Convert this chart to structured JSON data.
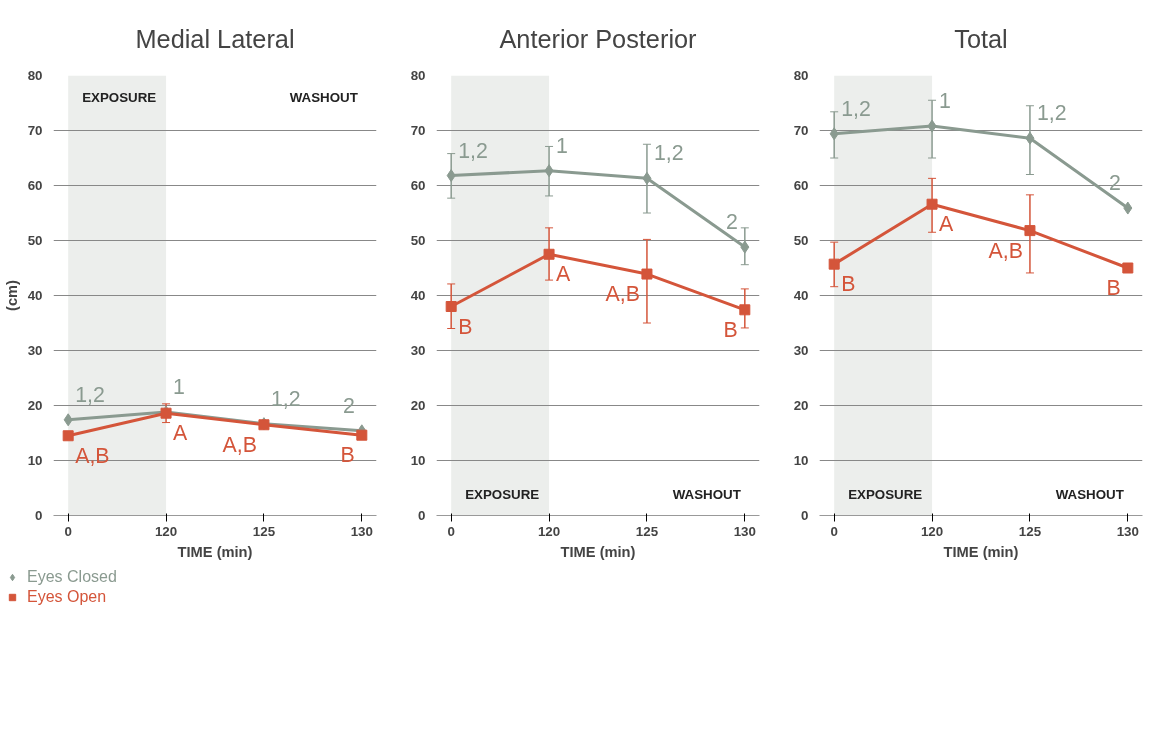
{
  "chart_data": [
    {
      "type": "line",
      "title": "Medial Lateral",
      "xlabel": "TIME (min)",
      "ylabel": "(cm)",
      "categories": [
        "0",
        "120",
        "125",
        "130"
      ],
      "ylim": [
        0,
        80
      ],
      "yticks": [
        0,
        10,
        20,
        30,
        40,
        50,
        60,
        70,
        80
      ],
      "grid": "y",
      "legend": "bottom left",
      "bands": [
        {
          "axis": "x",
          "from": "0",
          "to": "120",
          "color": "#eceeec"
        }
      ],
      "series": [
        {
          "name": "Eyes Closed",
          "color": "#8a9a90",
          "marker": "diamond",
          "values": [
            17.4,
            18.8,
            16.7,
            15.4
          ]
        },
        {
          "name": "Eyes Open",
          "color": "#d4553a",
          "marker": "square",
          "values": [
            14.5,
            18.6,
            16.5,
            14.6
          ],
          "errors": [
            null,
            [
              16.9,
              20.3
            ],
            null,
            null
          ]
        }
      ],
      "annotations": [
        "EXPOSURE",
        "WASHOUT",
        {
          "text": "1,2",
          "x": "0",
          "y": 17.4
        },
        {
          "text": "1",
          "x": "120",
          "y": 18.8
        },
        {
          "text": "1,2",
          "x": "125",
          "y": 16.7
        },
        {
          "text": "2",
          "x": "130",
          "y": 15.4
        },
        {
          "text": "A,B",
          "x": "0",
          "y": 14.5
        },
        {
          "text": "A",
          "x": "120",
          "y": 18.6
        },
        {
          "text": "A,B",
          "x": "125",
          "y": 16.5
        },
        {
          "text": "B",
          "x": "130",
          "y": 14.6
        }
      ]
    },
    {
      "type": "line",
      "title": "Anterior Posterior",
      "xlabel": "TIME (min)",
      "categories": [
        "0",
        "120",
        "125",
        "130"
      ],
      "ylim": [
        0,
        80
      ],
      "yticks": [
        0,
        10,
        20,
        30,
        40,
        50,
        60,
        70,
        80
      ],
      "grid": "y",
      "bands": [
        {
          "axis": "x",
          "from": "0",
          "to": "120",
          "color": "#eceeec"
        }
      ],
      "series": [
        {
          "color": "#8a9a90",
          "marker": "diamond",
          "values": [
            61.8,
            62.7,
            61.3,
            48.8
          ],
          "errors": [
            [
              57.7,
              65.8
            ],
            [
              58.1,
              67.1
            ],
            [
              55.0,
              67.5
            ],
            [
              45.6,
              52.3
            ]
          ]
        },
        {
          "color": "#d4553a",
          "marker": "square",
          "values": [
            38.0,
            47.5,
            43.9,
            37.4
          ],
          "errors": [
            [
              34.0,
              42.1
            ],
            [
              42.8,
              52.3
            ],
            [
              35.0,
              50.2
            ],
            [
              34.1,
              41.2
            ]
          ]
        }
      ],
      "annotations": [
        "EXPOSURE",
        "WASHOUT",
        {
          "text": "1,2",
          "x": "0",
          "y": 61.8
        },
        {
          "text": "1",
          "x": "120",
          "y": 62.7
        },
        {
          "text": "1,2",
          "x": "125",
          "y": 61.3
        },
        {
          "text": "2",
          "x": "130",
          "y": 48.8
        },
        {
          "text": "B",
          "x": "0",
          "y": 38.0
        },
        {
          "text": "A",
          "x": "120",
          "y": 47.5
        },
        {
          "text": "A,B",
          "x": "125",
          "y": 43.9
        },
        {
          "text": "B",
          "x": "130",
          "y": 37.4
        }
      ]
    },
    {
      "type": "line",
      "title": "Total",
      "xlabel": "TIME (min)",
      "categories": [
        "0",
        "120",
        "125",
        "130"
      ],
      "ylim": [
        0,
        80
      ],
      "yticks": [
        0,
        10,
        20,
        30,
        40,
        50,
        60,
        70,
        80
      ],
      "grid": "y",
      "bands": [
        {
          "axis": "x",
          "from": "0",
          "to": "120",
          "color": "#eceeec"
        }
      ],
      "series": [
        {
          "color": "#8a9a90",
          "marker": "diamond",
          "values": [
            69.4,
            70.8,
            68.6,
            55.9
          ],
          "errors": [
            [
              65.0,
              73.4
            ],
            [
              65.0,
              75.5
            ],
            [
              62.0,
              74.5
            ],
            null
          ]
        },
        {
          "color": "#d4553a",
          "marker": "square",
          "values": [
            45.7,
            56.6,
            51.8,
            45.0
          ],
          "errors": [
            [
              41.6,
              49.7
            ],
            [
              51.5,
              61.3
            ],
            [
              44.1,
              58.3
            ],
            null
          ]
        }
      ],
      "annotations": [
        "EXPOSURE",
        "WASHOUT",
        {
          "text": "1,2",
          "x": "0",
          "y": 69.4
        },
        {
          "text": "1",
          "x": "120",
          "y": 70.8
        },
        {
          "text": "1,2",
          "x": "125",
          "y": 68.6
        },
        {
          "text": "2",
          "x": "130",
          "y": 55.9
        },
        {
          "text": "B",
          "x": "0",
          "y": 45.7
        },
        {
          "text": "A",
          "x": "120",
          "y": 56.6
        },
        {
          "text": "A,B",
          "x": "125",
          "y": 51.8
        },
        {
          "text": "B",
          "x": "130",
          "y": 45.0
        }
      ]
    }
  ]
}
